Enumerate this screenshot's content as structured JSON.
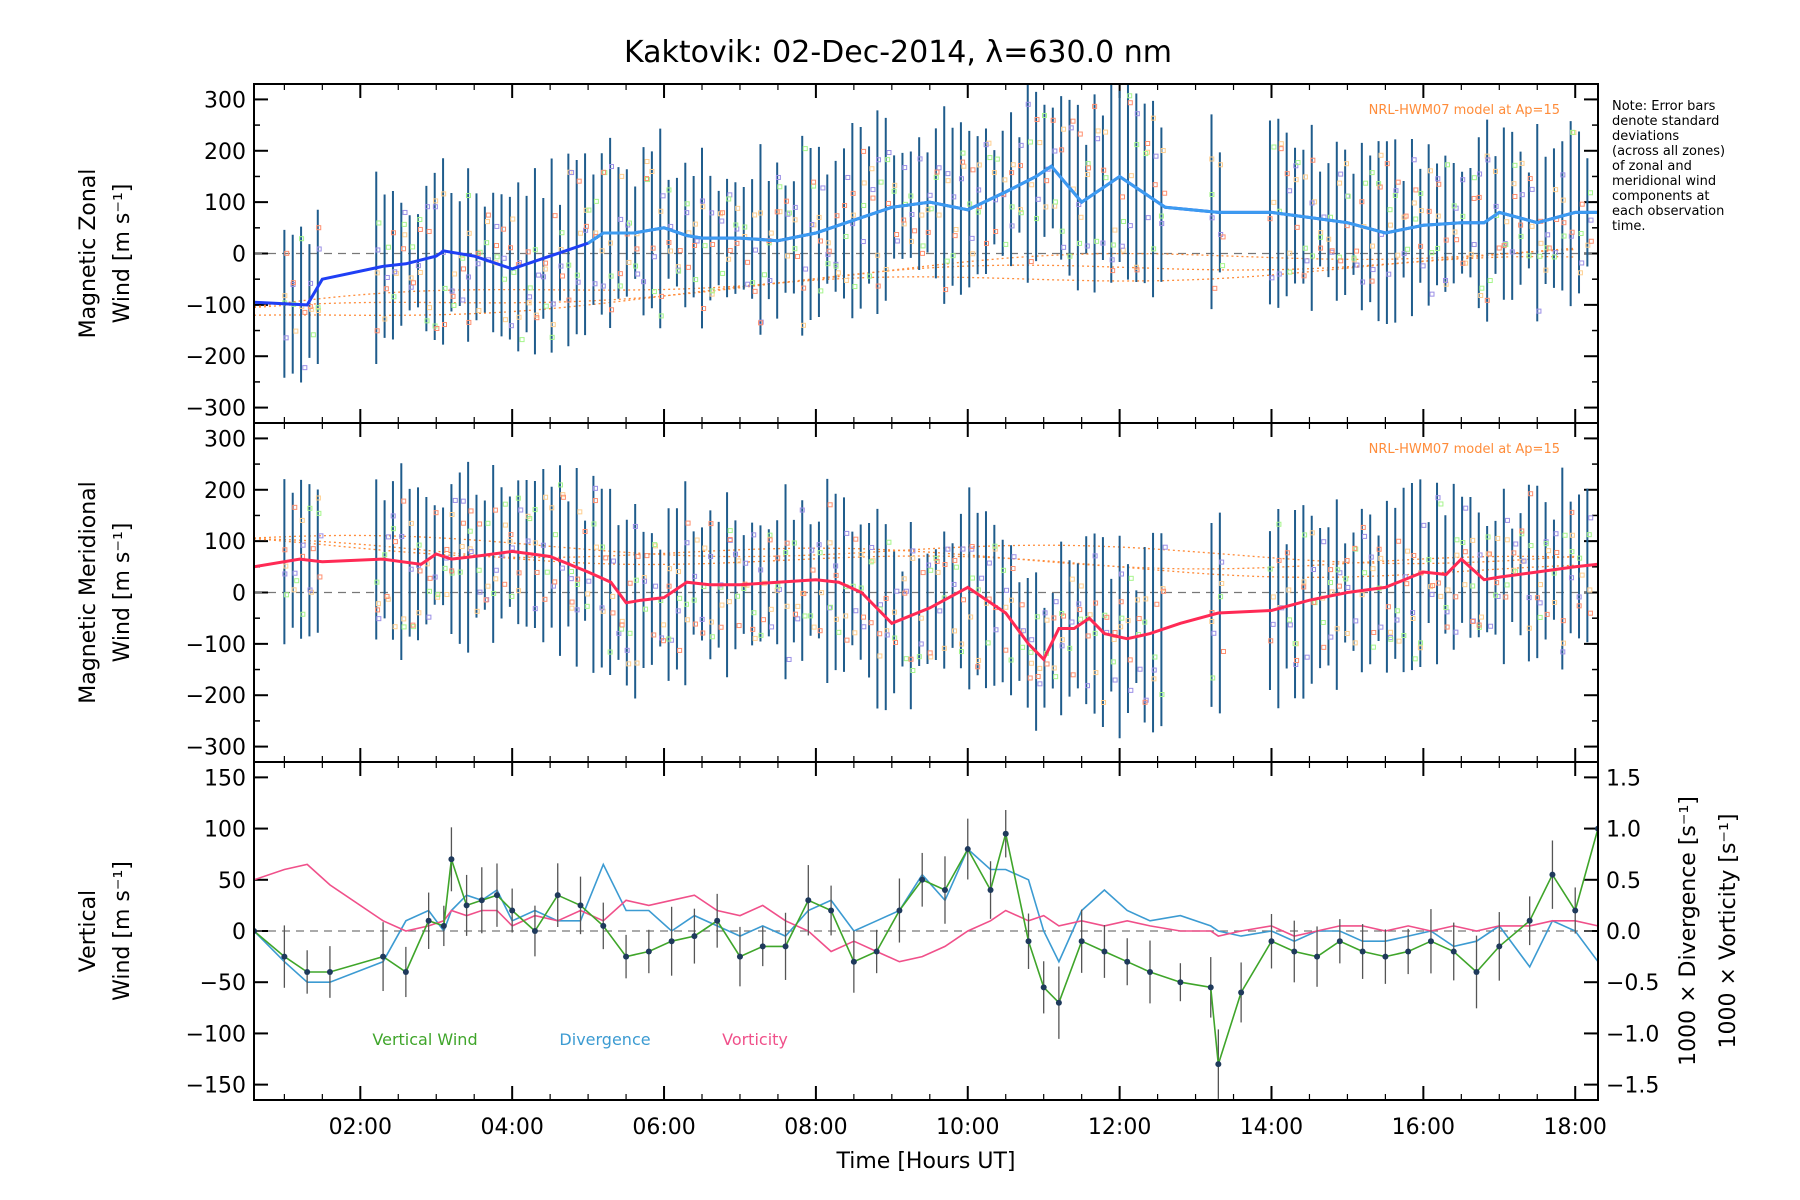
{
  "figure": {
    "title": "Kaktovik: 02-Dec-2014, λ=630.0 nm",
    "note_lines": [
      "Note: Error bars",
      "denote standard",
      "deviations",
      "(across all zones)",
      "of zonal and",
      "meridional wind",
      "components at",
      "each observation",
      "time."
    ],
    "colors": {
      "zonal": "#1f3ff5",
      "zonal_light": "#3c9bf0",
      "meridional": "#ff2a55",
      "vertical": "#3fa52a",
      "divergence": "#3c9bd2",
      "vorticity": "#f0508a",
      "model": "#ff8c3a",
      "errorbar": "#1f5c8c",
      "scatter_orange": "#ffcf8f",
      "scatter_purple": "#9b8fe6",
      "scatter_green": "#a6f58c",
      "scatter_red": "#ff8f6f"
    }
  },
  "chart_data": [
    {
      "type": "line",
      "panel": "zonal",
      "ylabel_lines": [
        "Magnetic Zonal",
        "Wind [m s⁻¹]"
      ],
      "model_label": "NRL-HWM07 model at Ap=15",
      "ylim": [
        -330,
        330
      ],
      "xlim": [
        0.6,
        18.3
      ],
      "yticks": [
        "300",
        "200",
        "100",
        "0",
        "−100",
        "−200",
        "−300"
      ],
      "zero_line": true,
      "x": [
        0.6,
        1.3,
        1.5,
        2.3,
        2.6,
        3.0,
        3.1,
        3.5,
        4.0,
        4.5,
        5.0,
        5.2,
        5.6,
        6.0,
        6.3,
        6.5,
        7.0,
        7.5,
        8.0,
        8.4,
        9.0,
        9.5,
        10.0,
        10.5,
        10.9,
        11.1,
        11.5,
        12.0,
        12.3,
        12.6,
        13.3,
        14.0,
        14.5,
        15.0,
        15.5,
        16.0,
        16.5,
        16.8,
        17.0,
        17.5,
        18.0,
        18.3
      ],
      "series": [
        {
          "name": "zonal wind",
          "values": [
            -95,
            -100,
            -50,
            -25,
            -20,
            -5,
            5,
            -5,
            -30,
            -5,
            20,
            40,
            40,
            50,
            35,
            30,
            30,
            25,
            40,
            60,
            90,
            100,
            85,
            120,
            150,
            170,
            100,
            150,
            120,
            90,
            80,
            80,
            70,
            60,
            40,
            55,
            60,
            60,
            80,
            60,
            80,
            80
          ]
        }
      ],
      "model_lines_start": [
        -110,
        -120,
        -130
      ],
      "model_lines_end": [
        10,
        -5,
        -20
      ]
    },
    {
      "type": "line",
      "panel": "meridional",
      "ylabel_lines": [
        "Magnetic Meridional",
        "Wind [m s⁻¹]"
      ],
      "model_label": "NRL-HWM07 model at Ap=15",
      "ylim": [
        -330,
        330
      ],
      "xlim": [
        0.6,
        18.3
      ],
      "yticks": [
        "300",
        "200",
        "100",
        "0",
        "−100",
        "−200",
        "−300"
      ],
      "zero_line": true,
      "x": [
        0.6,
        1.2,
        1.5,
        2.3,
        2.8,
        3.0,
        3.2,
        3.5,
        4.0,
        4.5,
        5.0,
        5.3,
        5.5,
        5.7,
        6.0,
        6.3,
        6.6,
        7.0,
        7.5,
        8.0,
        8.3,
        8.6,
        9.0,
        9.5,
        10.0,
        10.5,
        10.8,
        11.0,
        11.2,
        11.4,
        11.6,
        11.8,
        12.1,
        12.4,
        12.8,
        13.3,
        14.0,
        14.5,
        15.0,
        15.5,
        16.0,
        16.3,
        16.5,
        16.8,
        17.0,
        17.5,
        18.0,
        18.3
      ],
      "series": [
        {
          "name": "meridional wind",
          "values": [
            50,
            65,
            60,
            65,
            55,
            75,
            65,
            70,
            80,
            70,
            40,
            20,
            -20,
            -15,
            -10,
            20,
            15,
            15,
            20,
            25,
            20,
            0,
            -60,
            -30,
            10,
            -40,
            -100,
            -130,
            -70,
            -70,
            -50,
            -80,
            -90,
            -80,
            -60,
            -40,
            -35,
            -15,
            0,
            10,
            40,
            35,
            65,
            25,
            30,
            40,
            50,
            55
          ]
        }
      ],
      "model_lines_start": [
        100,
        90,
        95
      ],
      "model_lines_end": [
        70,
        40,
        55
      ]
    },
    {
      "type": "line",
      "panel": "vertical",
      "ylabel_lines": [
        "Vertical",
        "Wind [m s⁻¹]"
      ],
      "y2label_lines": [
        "1000 × Divergence [s⁻¹]",
        "1000 × Vorticity [s⁻¹]"
      ],
      "ylim": [
        -165,
        165
      ],
      "y2lim": [
        -1.65,
        1.65
      ],
      "xlim": [
        0.6,
        18.3
      ],
      "yticks": [
        "150",
        "100",
        "50",
        "0",
        "−50",
        "−100",
        "−150"
      ],
      "y2ticks": [
        "1.5",
        "1.0",
        "0.5",
        "0.0",
        "−0.5",
        "−1.0",
        "−1.5"
      ],
      "xticks": [
        2,
        4,
        6,
        8,
        10,
        12,
        14,
        16,
        18
      ],
      "xticklabels": [
        "02:00",
        "04:00",
        "06:00",
        "08:00",
        "10:00",
        "12:00",
        "14:00",
        "16:00",
        "18:00"
      ],
      "xlabel": "Time [Hours UT]",
      "zero_line": true,
      "legend": [
        "Vertical Wind",
        "Divergence",
        "Vorticity"
      ],
      "x": [
        0.6,
        1.0,
        1.3,
        1.6,
        2.3,
        2.6,
        2.9,
        3.1,
        3.2,
        3.4,
        3.6,
        3.8,
        4.0,
        4.3,
        4.6,
        4.9,
        5.2,
        5.5,
        5.8,
        6.1,
        6.4,
        6.7,
        7.0,
        7.3,
        7.6,
        7.9,
        8.2,
        8.5,
        8.8,
        9.1,
        9.4,
        9.7,
        10.0,
        10.3,
        10.5,
        10.8,
        11.0,
        11.2,
        11.5,
        11.8,
        12.1,
        12.4,
        12.8,
        13.2,
        13.3,
        13.6,
        14.0,
        14.3,
        14.6,
        14.9,
        15.2,
        15.5,
        15.8,
        16.1,
        16.4,
        16.7,
        17.0,
        17.4,
        17.7,
        18.0,
        18.3
      ],
      "series": [
        {
          "name": "Vertical Wind",
          "values": [
            0,
            -25,
            -40,
            -40,
            -25,
            -40,
            10,
            5,
            70,
            25,
            30,
            35,
            20,
            0,
            35,
            25,
            5,
            -25,
            -20,
            -10,
            -5,
            10,
            -25,
            -15,
            -15,
            30,
            20,
            -30,
            -20,
            20,
            50,
            40,
            80,
            40,
            95,
            -10,
            -55,
            -70,
            -10,
            -20,
            -30,
            -40,
            -50,
            -55,
            -130,
            -60,
            -10,
            -20,
            -25,
            -10,
            -20,
            -25,
            -20,
            -10,
            -20,
            -40,
            -15,
            10,
            55,
            20,
            100
          ]
        },
        {
          "name": "Divergence",
          "values": [
            0,
            -0.3,
            -0.5,
            -0.5,
            -0.3,
            0.1,
            0.2,
            0.0,
            0.2,
            0.35,
            0.3,
            0.4,
            0.1,
            0.2,
            0.1,
            0.1,
            0.65,
            0.2,
            0.2,
            0.0,
            0.15,
            0.05,
            -0.05,
            0.05,
            -0.05,
            0.2,
            0.3,
            0.0,
            0.1,
            0.2,
            0.55,
            0.3,
            0.8,
            0.6,
            0.6,
            0.5,
            0.0,
            -0.3,
            0.2,
            0.4,
            0.2,
            0.1,
            0.15,
            0.05,
            0.0,
            -0.05,
            0.0,
            -0.1,
            0.0,
            0.0,
            -0.1,
            -0.1,
            -0.05,
            0.0,
            -0.15,
            -0.1,
            0.05,
            -0.35,
            0.1,
            0.0,
            -0.3
          ]
        },
        {
          "name": "Vorticity",
          "values": [
            0.5,
            0.6,
            0.65,
            0.45,
            0.1,
            0.0,
            0.05,
            0.1,
            0.2,
            0.15,
            0.2,
            0.2,
            0.05,
            0.15,
            0.1,
            0.2,
            0.1,
            0.3,
            0.25,
            0.3,
            0.35,
            0.2,
            0.15,
            0.25,
            0.1,
            0.0,
            -0.2,
            -0.1,
            -0.2,
            -0.3,
            -0.25,
            -0.15,
            0.0,
            0.1,
            0.2,
            0.1,
            0.15,
            0.05,
            0.1,
            0.05,
            0.1,
            0.05,
            0.0,
            0.0,
            -0.05,
            0.0,
            0.05,
            -0.05,
            0.0,
            0.05,
            0.05,
            0.0,
            0.05,
            0.0,
            0.05,
            0.0,
            0.05,
            0.05,
            0.1,
            0.1,
            0.05
          ]
        }
      ]
    }
  ]
}
